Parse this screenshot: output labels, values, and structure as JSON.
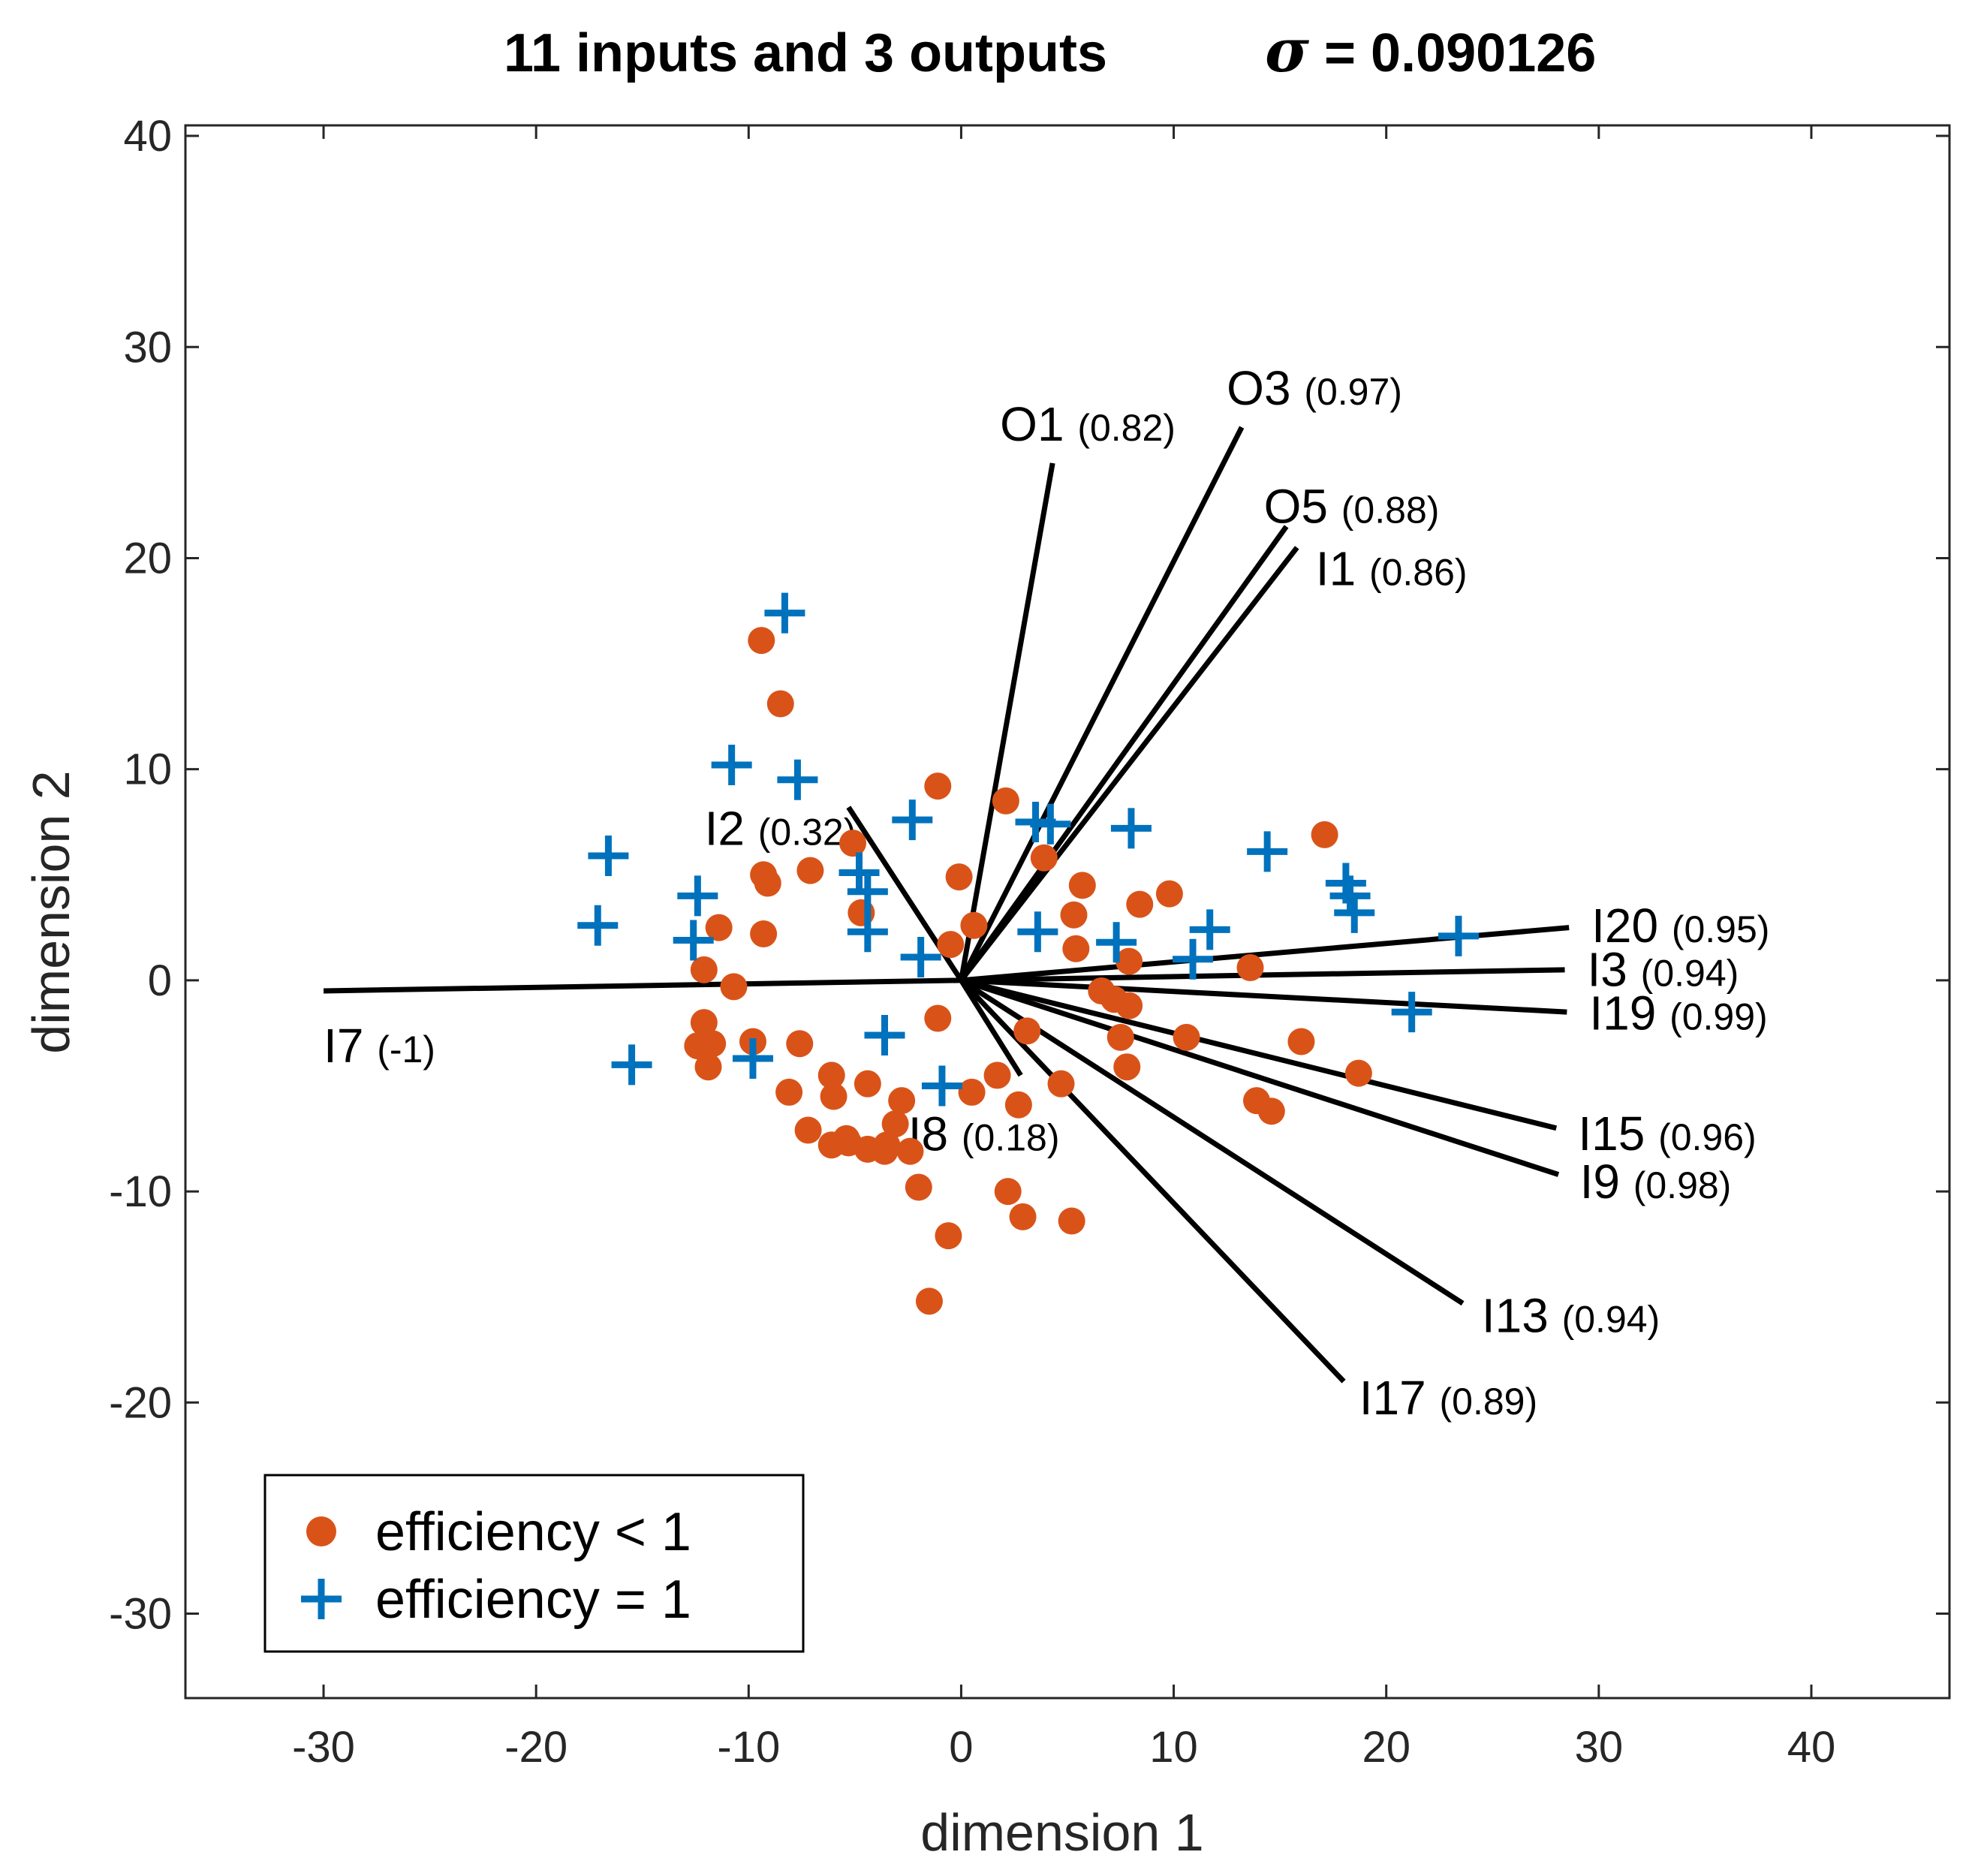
{
  "chart_data": {
    "type": "scatter",
    "title": "11 inputs and 3 outputs",
    "sigma_symbol": "σ",
    "sigma_text": " = 0.090126",
    "xlabel": "dimension 1",
    "ylabel": "dimension 2",
    "xlim": [
      -36.5,
      46.5
    ],
    "ylim": [
      -34,
      40.5
    ],
    "xticks": [
      -30,
      -20,
      -10,
      0,
      10,
      20,
      30,
      40
    ],
    "yticks": [
      -30,
      -20,
      -10,
      0,
      10,
      20,
      30,
      40
    ],
    "colors": {
      "inefficient": "#D95319",
      "efficient": "#0072BD",
      "vectors": "#000000"
    },
    "legend": [
      {
        "label": "efficiency < 1",
        "marker": "circle"
      },
      {
        "label": "efficiency = 1",
        "marker": "plus"
      }
    ],
    "vectors": [
      {
        "name": "O1",
        "value": "(0.82)",
        "x": 4.3,
        "y": 24.5
      },
      {
        "name": "O3",
        "value": "(0.97)",
        "x": 13.2,
        "y": 26.2
      },
      {
        "name": "O5",
        "value": "(0.88)",
        "x": 15.3,
        "y": 21.5
      },
      {
        "name": "I1",
        "value": "(0.86)",
        "x": 15.8,
        "y": 20.5
      },
      {
        "name": "I2",
        "value": "(0.32)",
        "x": -5.3,
        "y": 8.2
      },
      {
        "name": "I20",
        "value": "(0.95)",
        "x": 28.6,
        "y": 2.5
      },
      {
        "name": "I3",
        "value": "(0.94)",
        "x": 28.4,
        "y": 0.5
      },
      {
        "name": "I19",
        "value": "(0.99)",
        "x": 28.5,
        "y": -1.5
      },
      {
        "name": "I15",
        "value": "(0.96)",
        "x": 28.0,
        "y": -7.0
      },
      {
        "name": "I9",
        "value": "(0.98)",
        "x": 28.1,
        "y": -9.2
      },
      {
        "name": "I13",
        "value": "(0.94)",
        "x": 23.6,
        "y": -15.3
      },
      {
        "name": "I17",
        "value": "(0.89)",
        "x": 18.0,
        "y": -19.0
      },
      {
        "name": "I8",
        "value": "(0.18)",
        "x": 2.8,
        "y": -4.5
      },
      {
        "name": "I7",
        "value": "(-1)",
        "x": -30.0,
        "y": -0.5
      }
    ],
    "series": [
      {
        "name": "efficiency < 1",
        "points": [
          [
            -9.4,
            16.1
          ],
          [
            -8.5,
            13.1
          ],
          [
            -1.1,
            9.2
          ],
          [
            2.1,
            8.5
          ],
          [
            17.1,
            6.9
          ],
          [
            -5.1,
            6.5
          ],
          [
            3.9,
            5.8
          ],
          [
            -7.1,
            5.2
          ],
          [
            -9.3,
            5.0
          ],
          [
            -9.1,
            4.6
          ],
          [
            -0.1,
            4.9
          ],
          [
            5.7,
            4.5
          ],
          [
            8.4,
            3.6
          ],
          [
            9.8,
            4.1
          ],
          [
            -4.7,
            3.2
          ],
          [
            5.3,
            3.1
          ],
          [
            0.6,
            2.6
          ],
          [
            -11.4,
            2.5
          ],
          [
            -9.3,
            2.2
          ],
          [
            -0.5,
            1.7
          ],
          [
            5.4,
            1.5
          ],
          [
            -12.1,
            0.5
          ],
          [
            13.6,
            0.6
          ],
          [
            7.9,
            0.9
          ],
          [
            -10.7,
            -0.3
          ],
          [
            6.6,
            -0.5
          ],
          [
            7.2,
            -0.9
          ],
          [
            7.9,
            -1.2
          ],
          [
            -1.1,
            -1.8
          ],
          [
            -12.1,
            -2.0
          ],
          [
            -12.4,
            -3.1
          ],
          [
            -11.7,
            -3.0
          ],
          [
            -9.8,
            -2.9
          ],
          [
            -7.6,
            -3.0
          ],
          [
            10.6,
            -2.7
          ],
          [
            7.5,
            -2.7
          ],
          [
            16.0,
            -2.9
          ],
          [
            3.1,
            -2.4
          ],
          [
            -11.9,
            -4.1
          ],
          [
            7.8,
            -4.1
          ],
          [
            18.7,
            -4.4
          ],
          [
            1.7,
            -4.5
          ],
          [
            -6.1,
            -4.5
          ],
          [
            -4.4,
            -4.9
          ],
          [
            4.7,
            -4.9
          ],
          [
            -8.1,
            -5.3
          ],
          [
            -6.0,
            -5.5
          ],
          [
            13.9,
            -5.7
          ],
          [
            14.6,
            -6.2
          ],
          [
            0.5,
            -5.3
          ],
          [
            -2.8,
            -5.7
          ],
          [
            2.7,
            -5.9
          ],
          [
            -3.1,
            -6.8
          ],
          [
            -7.2,
            -7.1
          ],
          [
            -5.4,
            -7.5
          ],
          [
            -6.1,
            -7.8
          ],
          [
            -5.3,
            -7.7
          ],
          [
            -3.5,
            -7.8
          ],
          [
            -4.4,
            -8.0
          ],
          [
            -2.4,
            -8.1
          ],
          [
            -3.6,
            -8.1
          ],
          [
            -2.0,
            -9.8
          ],
          [
            2.2,
            -10.0
          ],
          [
            2.9,
            -11.2
          ],
          [
            5.2,
            -11.4
          ],
          [
            -0.6,
            -12.1
          ],
          [
            -1.5,
            -15.2
          ]
        ]
      },
      {
        "name": "efficiency = 1",
        "points": [
          [
            -8.3,
            17.4
          ],
          [
            -10.8,
            10.2
          ],
          [
            -7.7,
            9.5
          ],
          [
            -2.3,
            7.6
          ],
          [
            3.5,
            7.5
          ],
          [
            4.2,
            7.4
          ],
          [
            8.0,
            7.2
          ],
          [
            14.4,
            6.1
          ],
          [
            -16.6,
            5.9
          ],
          [
            -4.8,
            5.1
          ],
          [
            18.1,
            4.6
          ],
          [
            -12.4,
            4.0
          ],
          [
            -4.4,
            4.2
          ],
          [
            18.3,
            4.0
          ],
          [
            18.5,
            3.2
          ],
          [
            -17.1,
            2.6
          ],
          [
            11.7,
            2.4
          ],
          [
            3.6,
            2.3
          ],
          [
            -4.4,
            2.3
          ],
          [
            23.4,
            2.1
          ],
          [
            -12.6,
            1.9
          ],
          [
            7.3,
            1.8
          ],
          [
            -1.9,
            1.1
          ],
          [
            10.9,
            1.0
          ],
          [
            21.2,
            -1.5
          ],
          [
            -3.6,
            -2.6
          ],
          [
            -9.8,
            -3.7
          ],
          [
            -15.5,
            -4.0
          ],
          [
            -0.9,
            -5.0
          ]
        ]
      }
    ]
  }
}
